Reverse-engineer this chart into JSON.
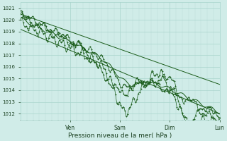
{
  "title": "",
  "xlabel": "Pression niveau de la mer( hPa )",
  "ylim": [
    1011.5,
    1021.5
  ],
  "yticks": [
    1012,
    1013,
    1014,
    1015,
    1016,
    1017,
    1018,
    1019,
    1020,
    1021
  ],
  "xlim": [
    0,
    96
  ],
  "xtick_positions": [
    24,
    48,
    72,
    96
  ],
  "xtick_labels": [
    "Ven",
    "Sam",
    "Dim",
    "Lun"
  ],
  "bg_color": "#d0ece8",
  "grid_color_major": "#a8d4cc",
  "grid_color_minor": "#b8dcd8",
  "line_color": "#1a5c1a",
  "tick_label_color": "#1a4020",
  "xlabel_color": "#1a4020"
}
